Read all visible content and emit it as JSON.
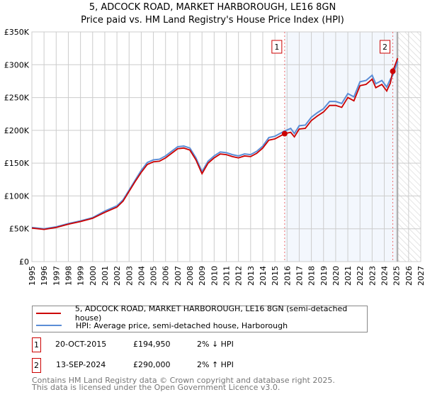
{
  "chart_data": {
    "type": "line",
    "title": "5, ADCOCK ROAD, MARKET HARBOROUGH, LE16 8GN",
    "subtitle": "Price paid vs. HM Land Registry's House Price Index (HPI)",
    "xlim": [
      1995,
      2027
    ],
    "ylim": [
      0,
      350000
    ],
    "x_ticks": [
      "1995",
      "1996",
      "1997",
      "1998",
      "1999",
      "2000",
      "2001",
      "2002",
      "2003",
      "2004",
      "2005",
      "2006",
      "2007",
      "2008",
      "2009",
      "2010",
      "2011",
      "2012",
      "2013",
      "2014",
      "2015",
      "2016",
      "2017",
      "2018",
      "2019",
      "2020",
      "2021",
      "2022",
      "2023",
      "2024",
      "2025",
      "2026",
      "2027"
    ],
    "y_ticks": [
      {
        "v": 0,
        "l": "£0"
      },
      {
        "v": 50000,
        "l": "£50K"
      },
      {
        "v": 100000,
        "l": "£100K"
      },
      {
        "v": 150000,
        "l": "£150K"
      },
      {
        "v": 200000,
        "l": "£200K"
      },
      {
        "v": 250000,
        "l": "£250K"
      },
      {
        "v": 300000,
        "l": "£300K"
      },
      {
        "v": 350000,
        "l": "£350K"
      }
    ],
    "grid": true,
    "series": [
      {
        "name": "5, ADCOCK ROAD, MARKET HARBOROUGH, LE16 8GN (semi-detached house)",
        "color": "#cc0000",
        "points": [
          [
            1995,
            51000
          ],
          [
            1996,
            49000
          ],
          [
            1997,
            52000
          ],
          [
            1998,
            57000
          ],
          [
            1999,
            61000
          ],
          [
            2000,
            66000
          ],
          [
            2001,
            75000
          ],
          [
            2002,
            83000
          ],
          [
            2002.5,
            92000
          ],
          [
            2003,
            107000
          ],
          [
            2003.5,
            122000
          ],
          [
            2004,
            136000
          ],
          [
            2004.5,
            148000
          ],
          [
            2005,
            152000
          ],
          [
            2005.5,
            153000
          ],
          [
            2006,
            158000
          ],
          [
            2006.5,
            165000
          ],
          [
            2007,
            172000
          ],
          [
            2007.5,
            173000
          ],
          [
            2008,
            170000
          ],
          [
            2008.5,
            155000
          ],
          [
            2009,
            134000
          ],
          [
            2009.5,
            150000
          ],
          [
            2010,
            158000
          ],
          [
            2010.5,
            164000
          ],
          [
            2011,
            163000
          ],
          [
            2011.5,
            160000
          ],
          [
            2012,
            158000
          ],
          [
            2012.5,
            161000
          ],
          [
            2013,
            160000
          ],
          [
            2013.5,
            165000
          ],
          [
            2014,
            173000
          ],
          [
            2014.5,
            185000
          ],
          [
            2015,
            187000
          ],
          [
            2015.8,
            194950
          ],
          [
            2016.3,
            197000
          ],
          [
            2016.6,
            190000
          ],
          [
            2017,
            202000
          ],
          [
            2017.5,
            203000
          ],
          [
            2018,
            215000
          ],
          [
            2018.5,
            222000
          ],
          [
            2019,
            228000
          ],
          [
            2019.5,
            238000
          ],
          [
            2020,
            238000
          ],
          [
            2020.5,
            235000
          ],
          [
            2021,
            250000
          ],
          [
            2021.5,
            245000
          ],
          [
            2022,
            268000
          ],
          [
            2022.5,
            270000
          ],
          [
            2023,
            278000
          ],
          [
            2023.3,
            265000
          ],
          [
            2023.8,
            270000
          ],
          [
            2024.2,
            260000
          ],
          [
            2024.5,
            272000
          ],
          [
            2024.7,
            290000
          ],
          [
            2025.1,
            310000
          ]
        ]
      },
      {
        "name": "HPI: Average price, semi-detached house, Harborough",
        "color": "#5b8dd6",
        "points": [
          [
            1995,
            52000
          ],
          [
            1996,
            50000
          ],
          [
            1997,
            53000
          ],
          [
            1998,
            58000
          ],
          [
            1999,
            62000
          ],
          [
            2000,
            67000
          ],
          [
            2001,
            77000
          ],
          [
            2002,
            85000
          ],
          [
            2002.5,
            94000
          ],
          [
            2003,
            109000
          ],
          [
            2003.5,
            124000
          ],
          [
            2004,
            139000
          ],
          [
            2004.5,
            151000
          ],
          [
            2005,
            155000
          ],
          [
            2005.5,
            156000
          ],
          [
            2006,
            161000
          ],
          [
            2006.5,
            168000
          ],
          [
            2007,
            175000
          ],
          [
            2007.5,
            176000
          ],
          [
            2008,
            173000
          ],
          [
            2008.5,
            158000
          ],
          [
            2009,
            137000
          ],
          [
            2009.5,
            153000
          ],
          [
            2010,
            161000
          ],
          [
            2010.5,
            167000
          ],
          [
            2011,
            166000
          ],
          [
            2011.5,
            163000
          ],
          [
            2012,
            161000
          ],
          [
            2012.5,
            164000
          ],
          [
            2013,
            163000
          ],
          [
            2013.5,
            168000
          ],
          [
            2014,
            176000
          ],
          [
            2014.5,
            189000
          ],
          [
            2015,
            191000
          ],
          [
            2015.8,
            199000
          ],
          [
            2016.3,
            203000
          ],
          [
            2016.6,
            195000
          ],
          [
            2017,
            207000
          ],
          [
            2017.5,
            208000
          ],
          [
            2018,
            220000
          ],
          [
            2018.5,
            227000
          ],
          [
            2019,
            233000
          ],
          [
            2019.5,
            244000
          ],
          [
            2020,
            244000
          ],
          [
            2020.5,
            241000
          ],
          [
            2021,
            256000
          ],
          [
            2021.5,
            251000
          ],
          [
            2022,
            274000
          ],
          [
            2022.5,
            276000
          ],
          [
            2023,
            284000
          ],
          [
            2023.3,
            271000
          ],
          [
            2023.8,
            276000
          ],
          [
            2024.2,
            266000
          ],
          [
            2024.5,
            278000
          ],
          [
            2024.7,
            284000
          ],
          [
            2025.1,
            305000
          ]
        ]
      }
    ],
    "sales": [
      {
        "id": "1",
        "x": 2015.8,
        "value": 194950
      },
      {
        "id": "2",
        "x": 2024.7,
        "value": 290000
      }
    ],
    "shaded_from": 2015.8,
    "shaded_to": 2025.1,
    "hatched_from": 2025.1,
    "legend_placement": "below"
  },
  "legend": {
    "items": [
      "5, ADCOCK ROAD, MARKET HARBOROUGH, LE16 8GN (semi-detached house)",
      "HPI: Average price, semi-detached house, Harborough"
    ]
  },
  "transactions": [
    {
      "id": "1",
      "date": "20-OCT-2015",
      "price": "£194,950",
      "hpi": "2% ↓ HPI"
    },
    {
      "id": "2",
      "date": "13-SEP-2024",
      "price": "£290,000",
      "hpi": "2% ↑ HPI"
    }
  ],
  "footer": {
    "line1": "Contains HM Land Registry data © Crown copyright and database right 2025.",
    "line2": "This data is licensed under the Open Government Licence v3.0."
  }
}
